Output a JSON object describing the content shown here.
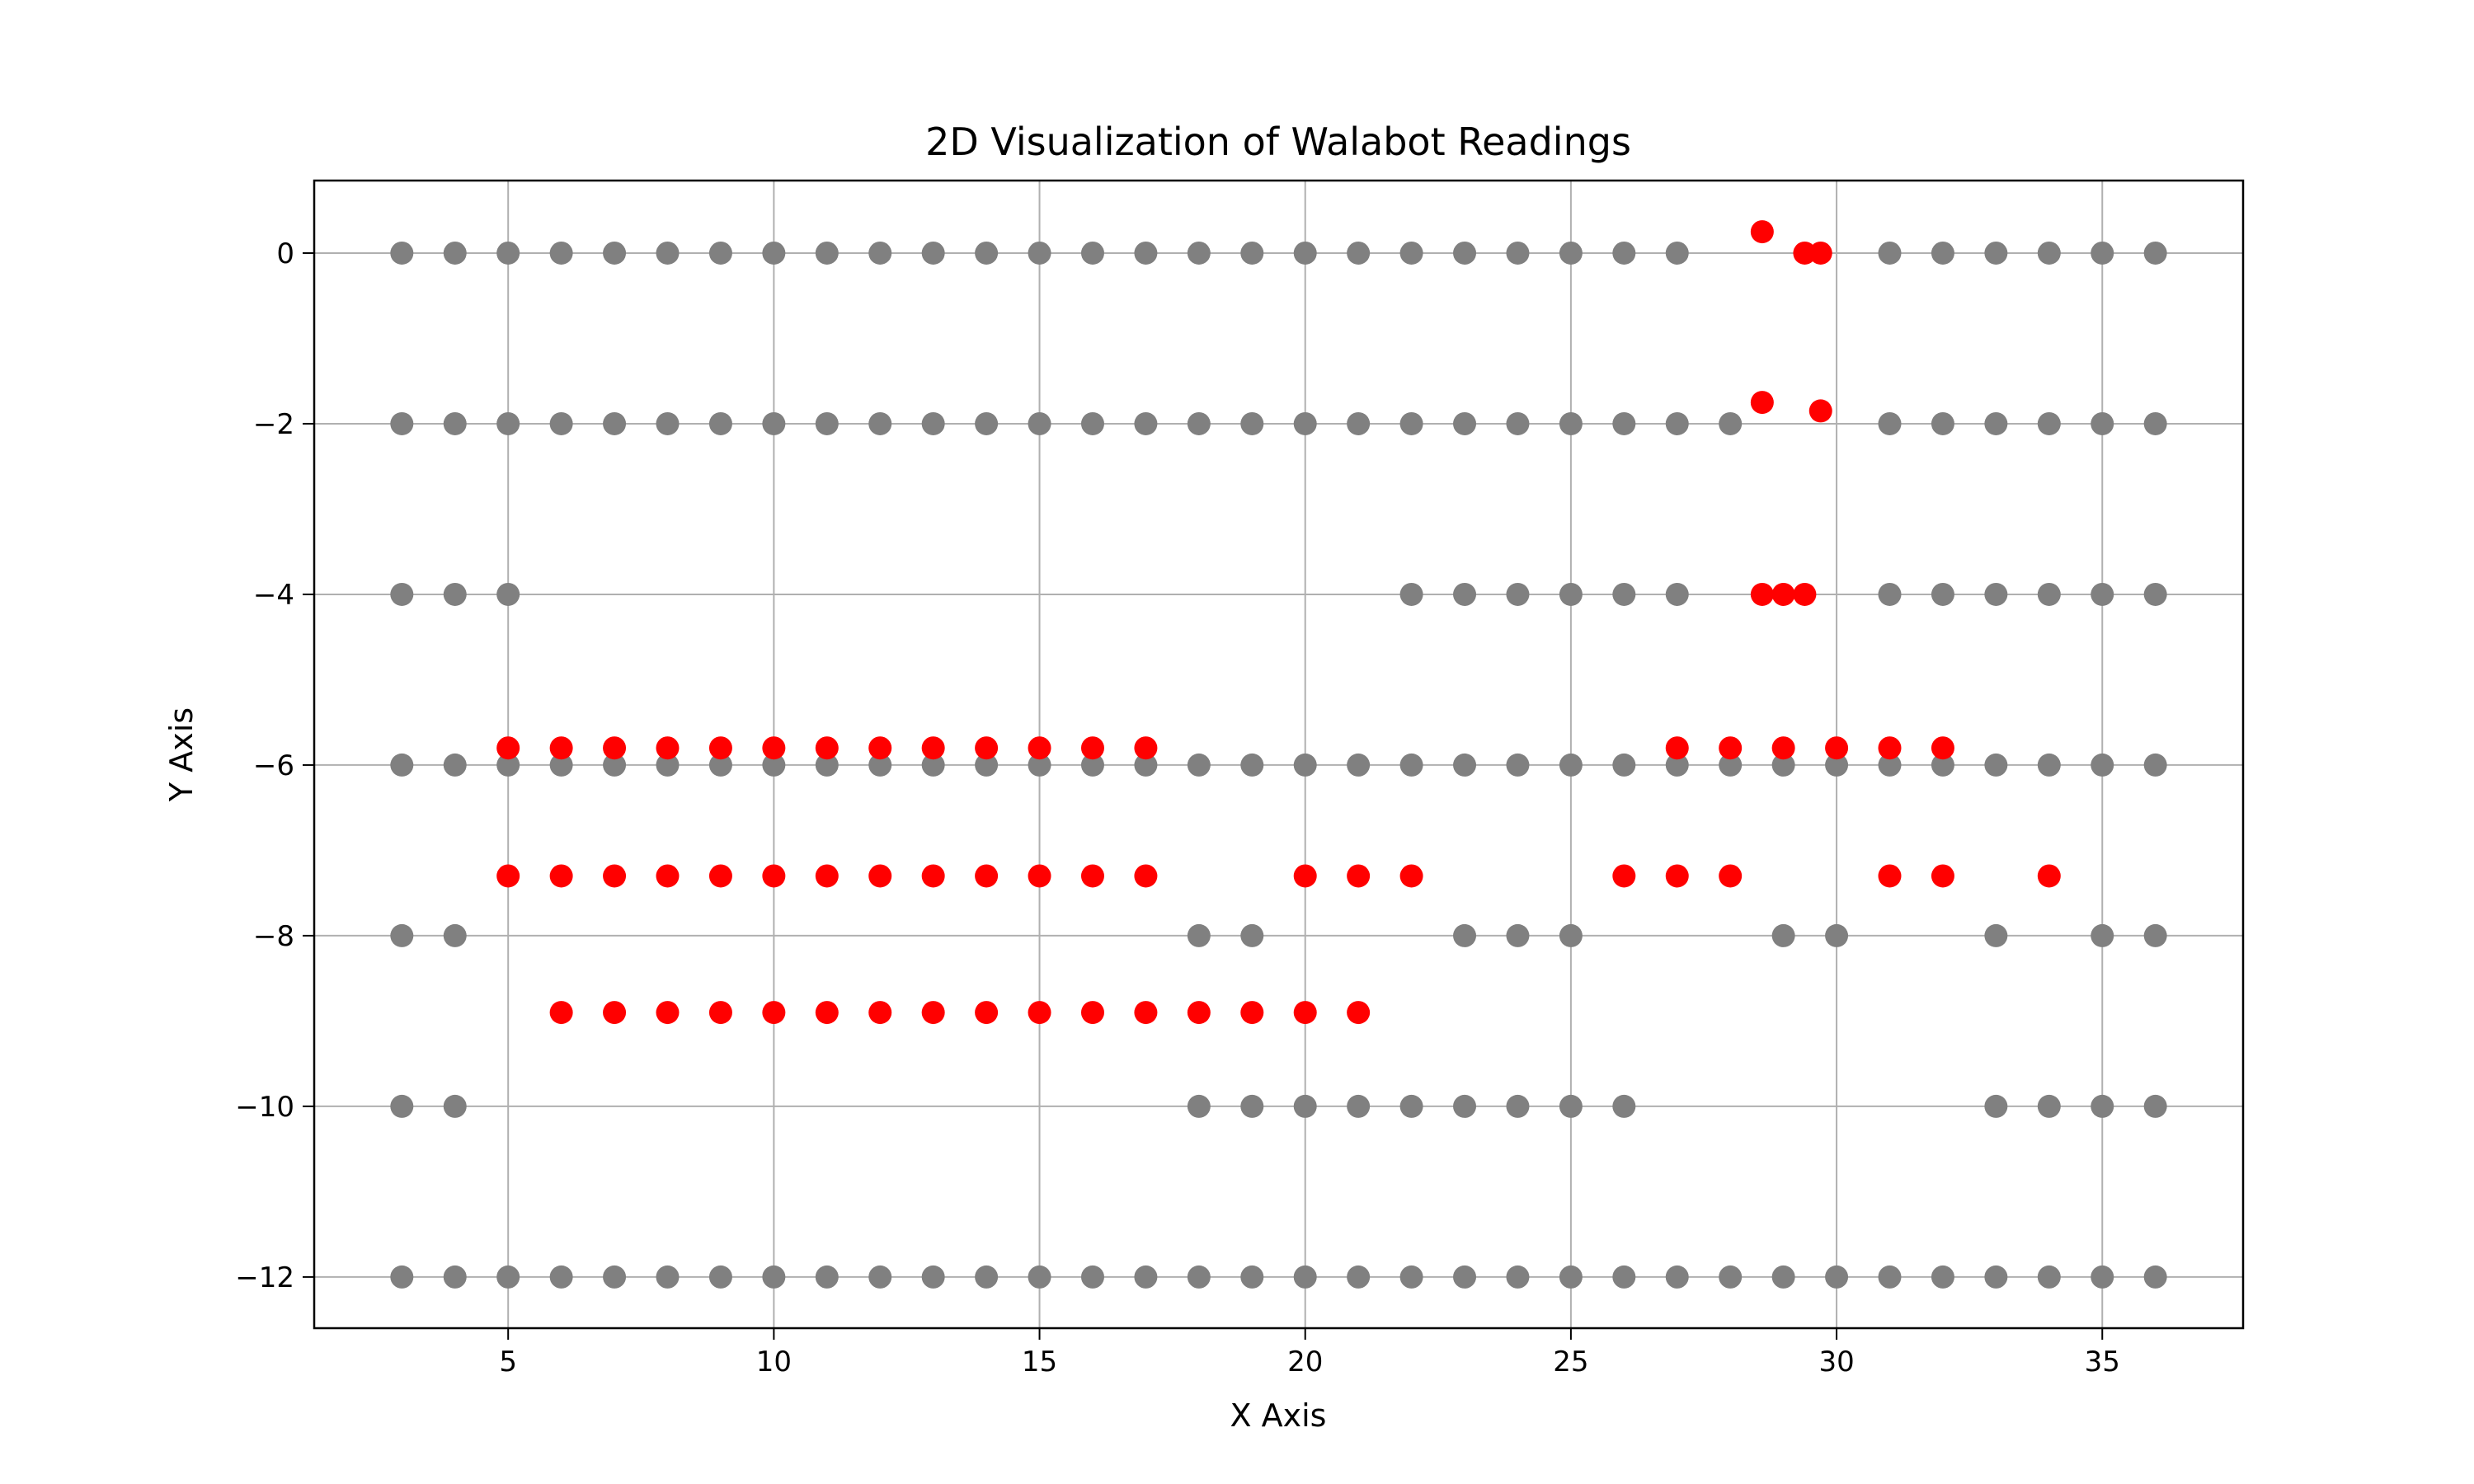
{
  "chart_data": {
    "type": "scatter",
    "title": "2D Visualization of Walabot Readings",
    "xlabel": "X Axis",
    "ylabel": "Y Axis",
    "xlim": [
      1.35,
      37.65
    ],
    "ylim": [
      -12.6,
      0.85
    ],
    "xticks": [
      5,
      10,
      15,
      20,
      25,
      30,
      35
    ],
    "yticks": [
      0,
      -2,
      -4,
      -6,
      -8,
      -10,
      -12
    ],
    "xtick_labels": [
      "5",
      "10",
      "15",
      "20",
      "25",
      "30",
      "35"
    ],
    "ytick_labels": [
      "0",
      "−2",
      "−4",
      "−6",
      "−8",
      "−10",
      "−12"
    ],
    "grid": true,
    "series": [
      {
        "color": "#808080",
        "points": [
          [
            3,
            0
          ],
          [
            4,
            0
          ],
          [
            5,
            0
          ],
          [
            6,
            0
          ],
          [
            7,
            0
          ],
          [
            8,
            0
          ],
          [
            9,
            0
          ],
          [
            10,
            0
          ],
          [
            11,
            0
          ],
          [
            12,
            0
          ],
          [
            13,
            0
          ],
          [
            14,
            0
          ],
          [
            15,
            0
          ],
          [
            16,
            0
          ],
          [
            17,
            0
          ],
          [
            18,
            0
          ],
          [
            19,
            0
          ],
          [
            20,
            0
          ],
          [
            21,
            0
          ],
          [
            22,
            0
          ],
          [
            23,
            0
          ],
          [
            24,
            0
          ],
          [
            25,
            0
          ],
          [
            26,
            0
          ],
          [
            27,
            0
          ],
          [
            31,
            0
          ],
          [
            32,
            0
          ],
          [
            33,
            0
          ],
          [
            34,
            0
          ],
          [
            35,
            0
          ],
          [
            36,
            0
          ],
          [
            3,
            -2
          ],
          [
            4,
            -2
          ],
          [
            5,
            -2
          ],
          [
            6,
            -2
          ],
          [
            7,
            -2
          ],
          [
            8,
            -2
          ],
          [
            9,
            -2
          ],
          [
            10,
            -2
          ],
          [
            11,
            -2
          ],
          [
            12,
            -2
          ],
          [
            13,
            -2
          ],
          [
            14,
            -2
          ],
          [
            15,
            -2
          ],
          [
            16,
            -2
          ],
          [
            17,
            -2
          ],
          [
            18,
            -2
          ],
          [
            19,
            -2
          ],
          [
            20,
            -2
          ],
          [
            21,
            -2
          ],
          [
            22,
            -2
          ],
          [
            23,
            -2
          ],
          [
            24,
            -2
          ],
          [
            25,
            -2
          ],
          [
            26,
            -2
          ],
          [
            27,
            -2
          ],
          [
            28,
            -2
          ],
          [
            31,
            -2
          ],
          [
            32,
            -2
          ],
          [
            33,
            -2
          ],
          [
            34,
            -2
          ],
          [
            35,
            -2
          ],
          [
            36,
            -2
          ],
          [
            3,
            -4
          ],
          [
            4,
            -4
          ],
          [
            5,
            -4
          ],
          [
            22,
            -4
          ],
          [
            23,
            -4
          ],
          [
            24,
            -4
          ],
          [
            25,
            -4
          ],
          [
            26,
            -4
          ],
          [
            27,
            -4
          ],
          [
            31,
            -4
          ],
          [
            32,
            -4
          ],
          [
            33,
            -4
          ],
          [
            34,
            -4
          ],
          [
            35,
            -4
          ],
          [
            36,
            -4
          ],
          [
            3,
            -6
          ],
          [
            4,
            -6
          ],
          [
            5,
            -6
          ],
          [
            6,
            -6
          ],
          [
            7,
            -6
          ],
          [
            8,
            -6
          ],
          [
            9,
            -6
          ],
          [
            10,
            -6
          ],
          [
            11,
            -6
          ],
          [
            12,
            -6
          ],
          [
            13,
            -6
          ],
          [
            14,
            -6
          ],
          [
            15,
            -6
          ],
          [
            16,
            -6
          ],
          [
            17,
            -6
          ],
          [
            18,
            -6
          ],
          [
            19,
            -6
          ],
          [
            20,
            -6
          ],
          [
            21,
            -6
          ],
          [
            22,
            -6
          ],
          [
            23,
            -6
          ],
          [
            24,
            -6
          ],
          [
            25,
            -6
          ],
          [
            26,
            -6
          ],
          [
            27,
            -6
          ],
          [
            28,
            -6
          ],
          [
            29,
            -6
          ],
          [
            30,
            -6
          ],
          [
            31,
            -6
          ],
          [
            32,
            -6
          ],
          [
            33,
            -6
          ],
          [
            34,
            -6
          ],
          [
            35,
            -6
          ],
          [
            36,
            -6
          ],
          [
            3,
            -8
          ],
          [
            4,
            -8
          ],
          [
            18,
            -8
          ],
          [
            19,
            -8
          ],
          [
            23,
            -8
          ],
          [
            24,
            -8
          ],
          [
            25,
            -8
          ],
          [
            29,
            -8
          ],
          [
            30,
            -8
          ],
          [
            33,
            -8
          ],
          [
            35,
            -8
          ],
          [
            36,
            -8
          ],
          [
            3,
            -10
          ],
          [
            4,
            -10
          ],
          [
            18,
            -10
          ],
          [
            19,
            -10
          ],
          [
            20,
            -10
          ],
          [
            21,
            -10
          ],
          [
            22,
            -10
          ],
          [
            23,
            -10
          ],
          [
            24,
            -10
          ],
          [
            25,
            -10
          ],
          [
            26,
            -10
          ],
          [
            33,
            -10
          ],
          [
            34,
            -10
          ],
          [
            35,
            -10
          ],
          [
            36,
            -10
          ],
          [
            3,
            -12
          ],
          [
            4,
            -12
          ],
          [
            5,
            -12
          ],
          [
            6,
            -12
          ],
          [
            7,
            -12
          ],
          [
            8,
            -12
          ],
          [
            9,
            -12
          ],
          [
            10,
            -12
          ],
          [
            11,
            -12
          ],
          [
            12,
            -12
          ],
          [
            13,
            -12
          ],
          [
            14,
            -12
          ],
          [
            15,
            -12
          ],
          [
            16,
            -12
          ],
          [
            17,
            -12
          ],
          [
            18,
            -12
          ],
          [
            19,
            -12
          ],
          [
            20,
            -12
          ],
          [
            21,
            -12
          ],
          [
            22,
            -12
          ],
          [
            23,
            -12
          ],
          [
            24,
            -12
          ],
          [
            25,
            -12
          ],
          [
            26,
            -12
          ],
          [
            27,
            -12
          ],
          [
            28,
            -12
          ],
          [
            29,
            -12
          ],
          [
            30,
            -12
          ],
          [
            31,
            -12
          ],
          [
            32,
            -12
          ],
          [
            33,
            -12
          ],
          [
            34,
            -12
          ],
          [
            35,
            -12
          ],
          [
            36,
            -12
          ]
        ]
      },
      {
        "color": "#ff0000",
        "points": [
          [
            28.6,
            0.25
          ],
          [
            29.4,
            0
          ],
          [
            29.7,
            0
          ],
          [
            28.6,
            -1.75
          ],
          [
            29.7,
            -1.85
          ],
          [
            28.6,
            -4
          ],
          [
            29.0,
            -4
          ],
          [
            29.4,
            -4
          ],
          [
            5,
            -5.8
          ],
          [
            6,
            -5.8
          ],
          [
            7,
            -5.8
          ],
          [
            8,
            -5.8
          ],
          [
            9,
            -5.8
          ],
          [
            10,
            -5.8
          ],
          [
            11,
            -5.8
          ],
          [
            12,
            -5.8
          ],
          [
            13,
            -5.8
          ],
          [
            14,
            -5.8
          ],
          [
            15,
            -5.8
          ],
          [
            16,
            -5.8
          ],
          [
            17,
            -5.8
          ],
          [
            27,
            -5.8
          ],
          [
            28,
            -5.8
          ],
          [
            29,
            -5.8
          ],
          [
            30,
            -5.8
          ],
          [
            31,
            -5.8
          ],
          [
            32,
            -5.8
          ],
          [
            5,
            -7.3
          ],
          [
            6,
            -7.3
          ],
          [
            7,
            -7.3
          ],
          [
            8,
            -7.3
          ],
          [
            9,
            -7.3
          ],
          [
            10,
            -7.3
          ],
          [
            11,
            -7.3
          ],
          [
            12,
            -7.3
          ],
          [
            13,
            -7.3
          ],
          [
            14,
            -7.3
          ],
          [
            15,
            -7.3
          ],
          [
            16,
            -7.3
          ],
          [
            17,
            -7.3
          ],
          [
            20,
            -7.3
          ],
          [
            21,
            -7.3
          ],
          [
            22,
            -7.3
          ],
          [
            26,
            -7.3
          ],
          [
            27,
            -7.3
          ],
          [
            28,
            -7.3
          ],
          [
            31,
            -7.3
          ],
          [
            32,
            -7.3
          ],
          [
            34,
            -7.3
          ],
          [
            6,
            -8.9
          ],
          [
            7,
            -8.9
          ],
          [
            8,
            -8.9
          ],
          [
            9,
            -8.9
          ],
          [
            10,
            -8.9
          ],
          [
            11,
            -8.9
          ],
          [
            12,
            -8.9
          ],
          [
            13,
            -8.9
          ],
          [
            14,
            -8.9
          ],
          [
            15,
            -8.9
          ],
          [
            16,
            -8.9
          ],
          [
            17,
            -8.9
          ],
          [
            18,
            -8.9
          ],
          [
            19,
            -8.9
          ],
          [
            20,
            -8.9
          ],
          [
            21,
            -8.9
          ]
        ]
      }
    ]
  }
}
